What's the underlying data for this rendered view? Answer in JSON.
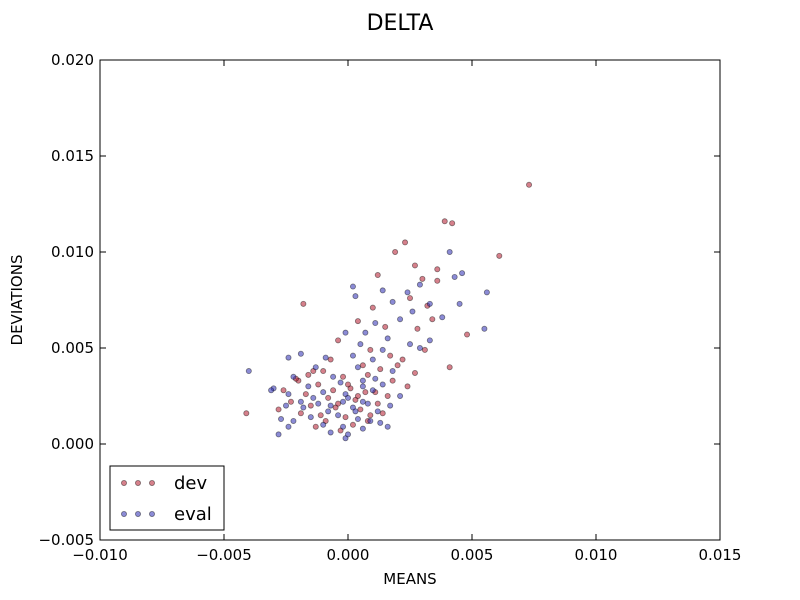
{
  "chart_data": {
    "type": "scatter",
    "title": "DELTA",
    "xlabel": "MEANS",
    "ylabel": "DEVIATIONS",
    "xlim": [
      -0.01,
      0.015
    ],
    "ylim": [
      -0.005,
      0.02
    ],
    "xticks": [
      -0.01,
      -0.005,
      0.0,
      0.005,
      0.01,
      0.015
    ],
    "xtick_labels": [
      "−0.010",
      "−0.005",
      "0.000",
      "0.005",
      "0.010",
      "0.015"
    ],
    "yticks": [
      -0.005,
      0.0,
      0.005,
      0.01,
      0.015,
      0.02
    ],
    "ytick_labels": [
      "−0.005",
      "0.000",
      "0.005",
      "0.010",
      "0.015",
      "0.020"
    ],
    "grid": false,
    "legend_position": "lower-left",
    "series": [
      {
        "name": "dev",
        "color": "#b2182b",
        "points": [
          [
            0.0073,
            0.0135
          ],
          [
            0.0039,
            0.0116
          ],
          [
            0.0042,
            0.0115
          ],
          [
            0.0023,
            0.0105
          ],
          [
            0.0061,
            0.0098
          ],
          [
            0.0019,
            0.01
          ],
          [
            0.0027,
            0.0093
          ],
          [
            0.0036,
            0.0091
          ],
          [
            0.0012,
            0.0088
          ],
          [
            0.003,
            0.0086
          ],
          [
            -0.0018,
            0.0073
          ],
          [
            0.0036,
            0.0085
          ],
          [
            0.0025,
            0.0076
          ],
          [
            0.0032,
            0.0072
          ],
          [
            0.001,
            0.0071
          ],
          [
            0.0004,
            0.0064
          ],
          [
            0.0015,
            0.0061
          ],
          [
            0.0028,
            0.006
          ],
          [
            0.0034,
            0.0065
          ],
          [
            0.0048,
            0.0057
          ],
          [
            -0.0004,
            0.0054
          ],
          [
            0.0009,
            0.0049
          ],
          [
            0.0017,
            0.0046
          ],
          [
            0.0022,
            0.0044
          ],
          [
            0.0031,
            0.0049
          ],
          [
            -0.0007,
            0.0044
          ],
          [
            0.0006,
            0.0041
          ],
          [
            0.0013,
            0.0039
          ],
          [
            0.0027,
            0.0037
          ],
          [
            0.0041,
            0.004
          ],
          [
            -0.0014,
            0.0038
          ],
          [
            -0.0002,
            0.0035
          ],
          [
            0.0008,
            0.0036
          ],
          [
            0.0018,
            0.0033
          ],
          [
            0.0024,
            0.003
          ],
          [
            -0.002,
            0.0033
          ],
          [
            -0.0012,
            0.0031
          ],
          [
            0.0001,
            0.0029
          ],
          [
            0.0011,
            0.0027
          ],
          [
            0.0016,
            0.0025
          ],
          [
            -0.0026,
            0.0028
          ],
          [
            -0.0017,
            0.0026
          ],
          [
            -0.0008,
            0.0024
          ],
          [
            0.0003,
            0.0023
          ],
          [
            0.0012,
            0.0021
          ],
          [
            -0.0023,
            0.0022
          ],
          [
            -0.0015,
            0.002
          ],
          [
            -0.0005,
            0.0019
          ],
          [
            0.0005,
            0.0018
          ],
          [
            0.0014,
            0.0016
          ],
          [
            -0.0028,
            0.0018
          ],
          [
            -0.0019,
            0.0016
          ],
          [
            -0.0011,
            0.0015
          ],
          [
            -0.0001,
            0.0014
          ],
          [
            0.0008,
            0.0012
          ],
          [
            -0.0041,
            0.0016
          ],
          [
            -0.0009,
            0.0012
          ],
          [
            0.0002,
            0.001
          ],
          [
            -0.0013,
            0.0009
          ],
          [
            -0.0003,
            0.0007
          ],
          [
            -0.001,
            0.0038
          ],
          [
            0.0,
            0.0031
          ],
          [
            0.0007,
            0.0027
          ],
          [
            -0.0016,
            0.0036
          ],
          [
            0.002,
            0.0041
          ],
          [
            -0.0006,
            0.0028
          ],
          [
            0.0004,
            0.0025
          ],
          [
            -0.0021,
            0.0034
          ],
          [
            -0.0004,
            0.0021
          ],
          [
            0.0009,
            0.0015
          ]
        ]
      },
      {
        "name": "eval",
        "color": "#2b2bb2",
        "points": [
          [
            0.0041,
            0.01
          ],
          [
            0.0046,
            0.0089
          ],
          [
            0.0043,
            0.0087
          ],
          [
            0.0056,
            0.0079
          ],
          [
            0.0029,
            0.0083
          ],
          [
            0.0002,
            0.0082
          ],
          [
            0.0014,
            0.008
          ],
          [
            0.0024,
            0.0079
          ],
          [
            0.0045,
            0.0073
          ],
          [
            0.0033,
            0.0073
          ],
          [
            0.0003,
            0.0077
          ],
          [
            0.0018,
            0.0074
          ],
          [
            0.0026,
            0.0069
          ],
          [
            0.0021,
            0.0065
          ],
          [
            0.0038,
            0.0066
          ],
          [
            0.0055,
            0.006
          ],
          [
            0.0011,
            0.0063
          ],
          [
            0.0007,
            0.0058
          ],
          [
            0.0016,
            0.0055
          ],
          [
            0.0025,
            0.0052
          ],
          [
            0.0033,
            0.0054
          ],
          [
            -0.0001,
            0.0058
          ],
          [
            0.0005,
            0.0052
          ],
          [
            0.0014,
            0.0049
          ],
          [
            0.0029,
            0.005
          ],
          [
            -0.0024,
            0.0045
          ],
          [
            -0.0019,
            0.0047
          ],
          [
            -0.0009,
            0.0045
          ],
          [
            0.0002,
            0.0046
          ],
          [
            0.001,
            0.0044
          ],
          [
            -0.004,
            0.0038
          ],
          [
            -0.003,
            0.0029
          ],
          [
            -0.0013,
            0.004
          ],
          [
            0.0004,
            0.004
          ],
          [
            0.0018,
            0.0038
          ],
          [
            -0.0031,
            0.0028
          ],
          [
            -0.0022,
            0.0035
          ],
          [
            -0.0006,
            0.0035
          ],
          [
            0.0006,
            0.0033
          ],
          [
            0.0014,
            0.0031
          ],
          [
            -0.0024,
            0.0026
          ],
          [
            -0.0016,
            0.003
          ],
          [
            -0.0003,
            0.0032
          ],
          [
            0.001,
            0.0028
          ],
          [
            0.0021,
            0.0025
          ],
          [
            -0.0025,
            0.002
          ],
          [
            -0.0014,
            0.0024
          ],
          [
            -0.0001,
            0.0026
          ],
          [
            0.0006,
            0.0022
          ],
          [
            0.0017,
            0.002
          ],
          [
            -0.0027,
            0.0013
          ],
          [
            -0.0018,
            0.0019
          ],
          [
            -0.0007,
            0.002
          ],
          [
            0.0002,
            0.0019
          ],
          [
            0.0012,
            0.0017
          ],
          [
            -0.0022,
            0.0012
          ],
          [
            -0.0015,
            0.0014
          ],
          [
            -0.0004,
            0.0015
          ],
          [
            0.0004,
            0.0013
          ],
          [
            0.0013,
            0.0011
          ],
          [
            -0.0028,
            0.0005
          ],
          [
            -0.0024,
            0.0009
          ],
          [
            -0.001,
            0.001
          ],
          [
            -0.0002,
            0.0009
          ],
          [
            0.0006,
            0.0008
          ],
          [
            -0.0007,
            0.0006
          ],
          [
            -0.0001,
            0.0003
          ],
          [
            0.0,
            0.0005
          ],
          [
            0.0009,
            0.0012
          ],
          [
            0.0016,
            0.0009
          ],
          [
            -0.0012,
            0.0021
          ],
          [
            -0.0008,
            0.0017
          ],
          [
            -0.0002,
            0.0022
          ],
          [
            0.0003,
            0.0017
          ],
          [
            0.0008,
            0.0021
          ],
          [
            -0.001,
            0.0027
          ],
          [
            0.0,
            0.0024
          ],
          [
            0.0006,
            0.003
          ],
          [
            -0.0019,
            0.0022
          ],
          [
            0.0011,
            0.0034
          ]
        ]
      }
    ]
  }
}
